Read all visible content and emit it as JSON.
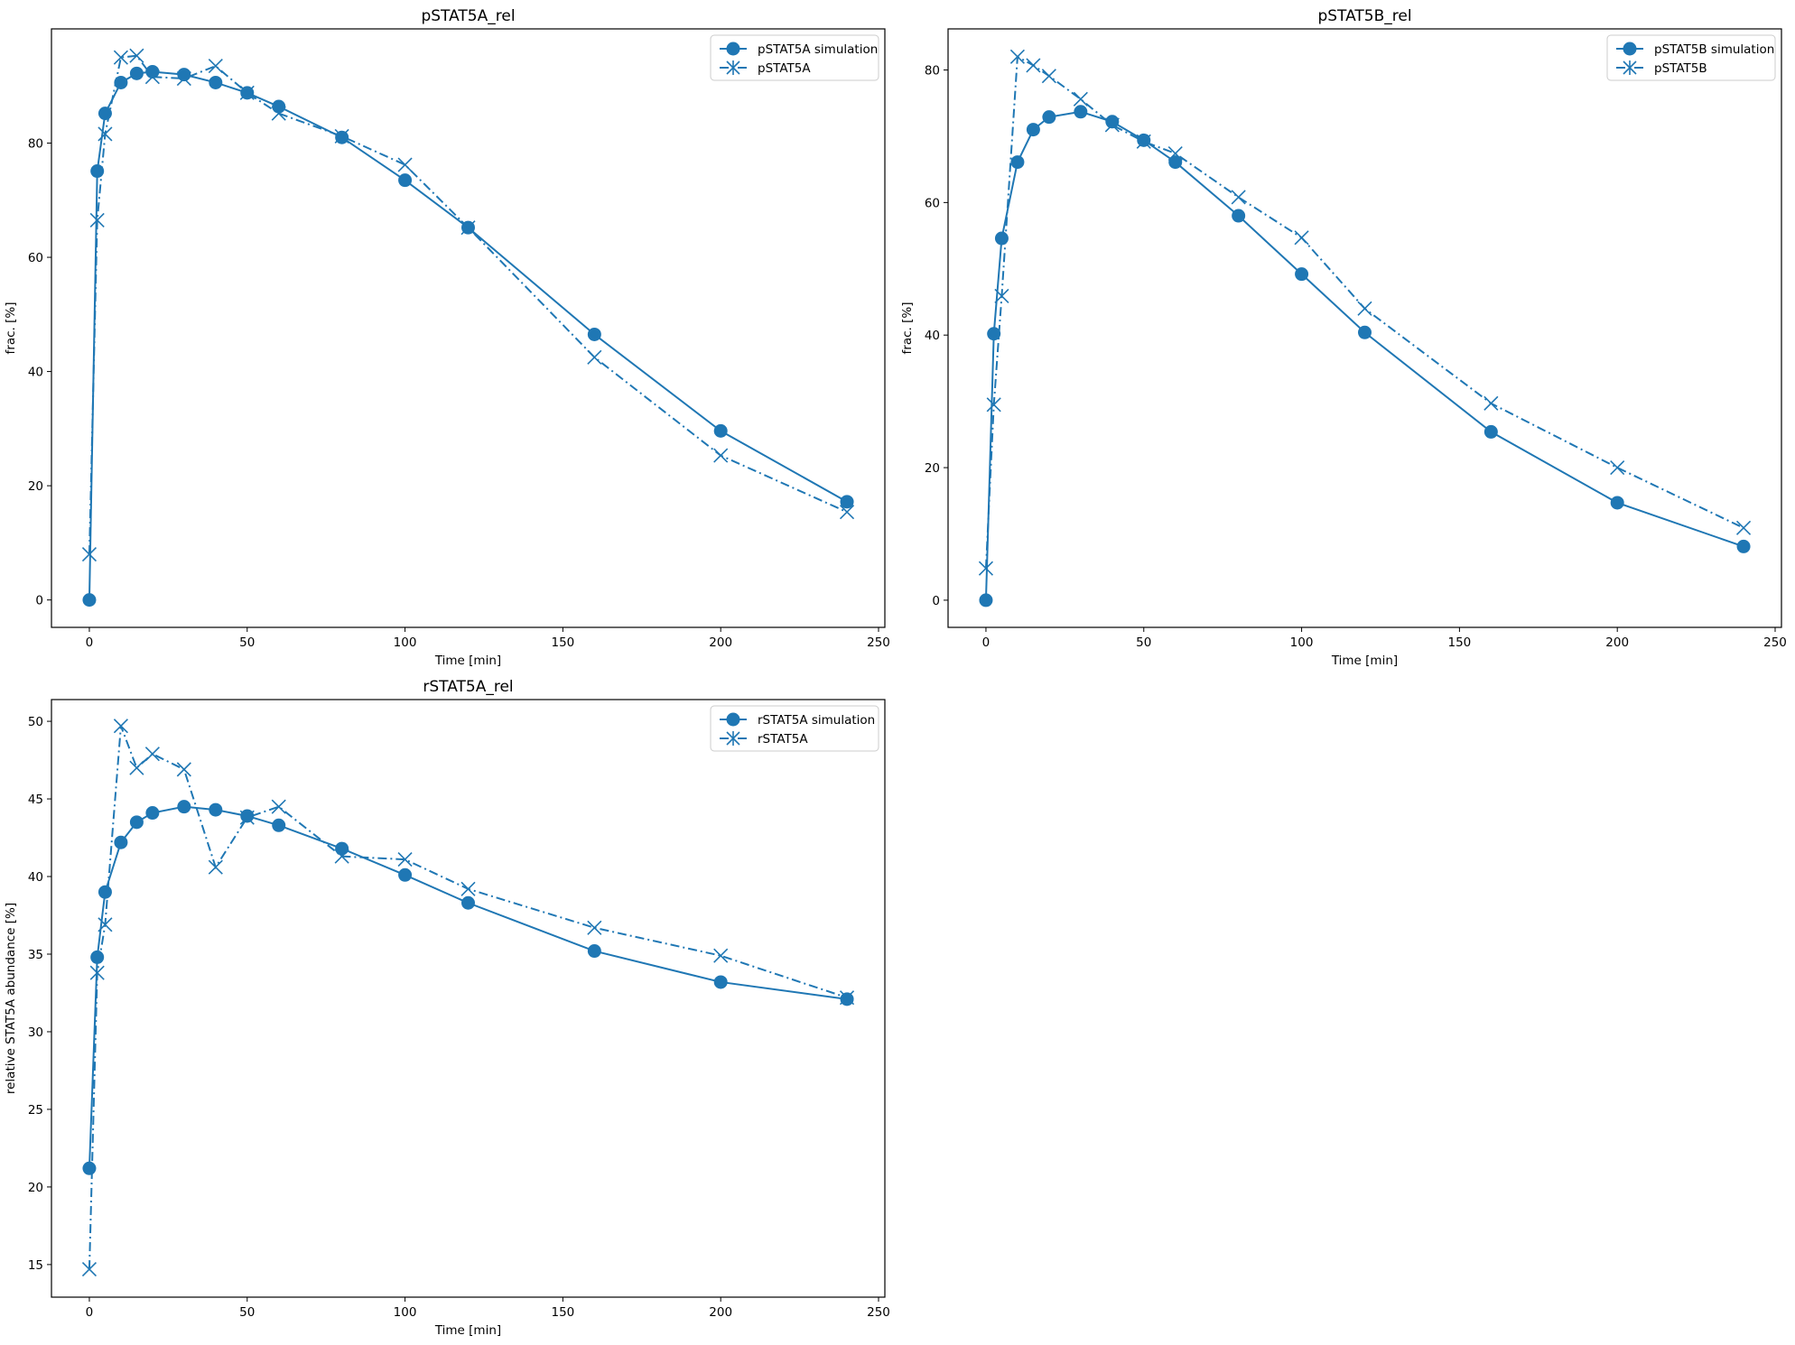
{
  "chart_data": [
    {
      "type": "line",
      "title": "pSTAT5A_rel",
      "xlabel": "Time [min]",
      "ylabel": "frac. [%]",
      "xlim": [
        -12,
        252
      ],
      "ylim": [
        -4.8,
        100
      ],
      "xticks": [
        0,
        50,
        100,
        150,
        200,
        250
      ],
      "yticks": [
        0,
        20,
        40,
        60,
        80
      ],
      "legend_position": "top-right",
      "x": [
        0,
        2.5,
        5,
        10,
        15,
        20,
        30,
        40,
        50,
        60,
        80,
        100,
        120,
        160,
        200,
        240
      ],
      "series": [
        {
          "name": "pSTAT5A simulation",
          "style": "solid-circle",
          "values": [
            0,
            75.1,
            85.2,
            90.6,
            92.2,
            92.5,
            92.0,
            90.6,
            88.8,
            86.4,
            81.0,
            73.5,
            65.2,
            46.5,
            29.6,
            17.2
          ]
        },
        {
          "name": "pSTAT5A",
          "style": "dashdot-x",
          "values": [
            8.0,
            66.5,
            81.6,
            95.0,
            95.3,
            91.6,
            91.3,
            93.5,
            88.8,
            85.2,
            81.2,
            76.2,
            65.2,
            42.5,
            25.3,
            15.4
          ]
        }
      ]
    },
    {
      "type": "line",
      "title": "pSTAT5B_rel",
      "xlabel": "Time [min]",
      "ylabel": "frac. [%]",
      "xlim": [
        -12,
        252
      ],
      "ylim": [
        -4.1,
        86.2
      ],
      "xticks": [
        0,
        50,
        100,
        150,
        200,
        250
      ],
      "yticks": [
        0,
        20,
        40,
        60,
        80
      ],
      "legend_position": "top-right",
      "x": [
        0,
        2.5,
        5,
        10,
        15,
        20,
        30,
        40,
        50,
        60,
        80,
        100,
        120,
        160,
        200,
        240
      ],
      "series": [
        {
          "name": "pSTAT5B simulation",
          "style": "solid-circle",
          "values": [
            0,
            40.2,
            54.6,
            66.1,
            71.0,
            72.9,
            73.7,
            72.2,
            69.4,
            66.1,
            58.0,
            49.2,
            40.4,
            25.4,
            14.7,
            8.1
          ]
        },
        {
          "name": "pSTAT5B",
          "style": "dashdot-x",
          "values": [
            4.8,
            29.5,
            45.9,
            82.0,
            80.7,
            79.1,
            75.6,
            71.7,
            69.2,
            67.4,
            60.8,
            54.7,
            44.0,
            29.7,
            20.0,
            10.9
          ]
        }
      ]
    },
    {
      "type": "line",
      "title": "rSTAT5A_rel",
      "xlabel": "Time [min]",
      "ylabel": "relative STAT5A abundance [%]",
      "xlim": [
        -12,
        252
      ],
      "ylim": [
        12.9,
        51.4
      ],
      "xticks": [
        0,
        50,
        100,
        150,
        200,
        250
      ],
      "yticks": [
        15,
        20,
        25,
        30,
        35,
        40,
        45,
        50
      ],
      "legend_position": "top-right",
      "x": [
        0,
        2.5,
        5,
        10,
        15,
        20,
        30,
        40,
        50,
        60,
        80,
        100,
        120,
        160,
        200,
        240
      ],
      "series": [
        {
          "name": "rSTAT5A simulation",
          "style": "solid-circle",
          "values": [
            21.2,
            34.8,
            39.0,
            42.2,
            43.5,
            44.1,
            44.5,
            44.3,
            43.9,
            43.3,
            41.8,
            40.1,
            38.3,
            35.2,
            33.2,
            32.1
          ]
        },
        {
          "name": "rSTAT5A",
          "style": "dashdot-x",
          "values": [
            14.7,
            33.8,
            36.9,
            49.7,
            47.0,
            47.9,
            46.9,
            40.6,
            43.8,
            44.5,
            41.3,
            41.1,
            39.2,
            36.7,
            34.9,
            32.2
          ]
        }
      ]
    }
  ],
  "colors": {
    "line": "#1f77b4",
    "axis": "#000000",
    "legend_border": "#cccccc"
  }
}
